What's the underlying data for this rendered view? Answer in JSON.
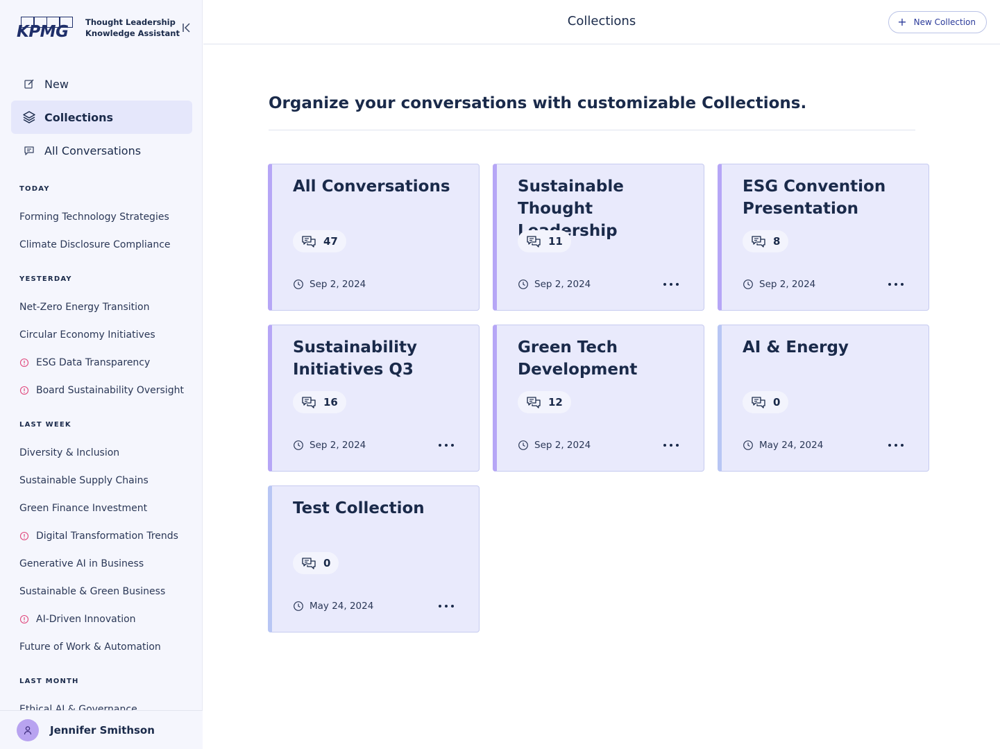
{
  "brand": {
    "logo_text": "KPMG",
    "subtitle_line1": "Thought Leadership",
    "subtitle_line2": "Knowledge Assistant"
  },
  "nav": {
    "items": [
      {
        "label": "New",
        "icon": "edit-icon",
        "active": false
      },
      {
        "label": "Collections",
        "icon": "layers-icon",
        "active": true
      },
      {
        "label": "All Conversations",
        "icon": "chat-icon",
        "active": false
      }
    ]
  },
  "history": {
    "groups": [
      {
        "title": "TODAY",
        "items": [
          {
            "label": "Forming Technology Strategies",
            "warning": false
          },
          {
            "label": "Climate Disclosure Compliance",
            "warning": false
          }
        ]
      },
      {
        "title": "YESTERDAY",
        "items": [
          {
            "label": "Net-Zero Energy Transition",
            "warning": false
          },
          {
            "label": "Circular Economy Initiatives",
            "warning": false
          },
          {
            "label": "ESG Data Transparency",
            "warning": true
          },
          {
            "label": "Board Sustainability Oversight",
            "warning": true
          }
        ]
      },
      {
        "title": "LAST WEEK",
        "items": [
          {
            "label": "Diversity & Inclusion",
            "warning": false
          },
          {
            "label": "Sustainable Supply Chains",
            "warning": false
          },
          {
            "label": "Green Finance Investment",
            "warning": false
          },
          {
            "label": "Digital Transformation Trends",
            "warning": true
          },
          {
            "label": "Generative AI in Business",
            "warning": false
          },
          {
            "label": "Sustainable & Green Business",
            "warning": false
          },
          {
            "label": "AI-Driven Innovation",
            "warning": true
          },
          {
            "label": "Future of Work & Automation",
            "warning": false
          }
        ]
      },
      {
        "title": "LAST MONTH",
        "items": [
          {
            "label": "Ethical AI & Governance",
            "warning": false
          }
        ]
      }
    ]
  },
  "user": {
    "name": "Jennifer Smithson"
  },
  "header": {
    "title": "Collections",
    "new_collection_label": "New Collection"
  },
  "main": {
    "heading": "Organize your conversations with customizable Collections."
  },
  "collections": [
    {
      "title": "All Conversations",
      "count": "47",
      "date": "Sep 2, 2024",
      "menu": false,
      "accent": "purple"
    },
    {
      "title": "Sustainable Thought Leadership",
      "count": "11",
      "date": "Sep 2, 2024",
      "menu": true,
      "accent": "purple"
    },
    {
      "title": "ESG Convention Presentation",
      "count": "8",
      "date": "Sep 2, 2024",
      "menu": true,
      "accent": "purple"
    },
    {
      "title": "Sustainability Initiatives Q3",
      "count": "16",
      "date": "Sep 2, 2024",
      "menu": true,
      "accent": "purple"
    },
    {
      "title": "Green Tech Development",
      "count": "12",
      "date": "Sep 2, 2024",
      "menu": true,
      "accent": "purple"
    },
    {
      "title": "AI & Energy",
      "count": "0",
      "date": "May 24, 2024",
      "menu": true,
      "accent": "blue"
    },
    {
      "title": "Test Collection",
      "count": "0",
      "date": "May 24, 2024",
      "menu": true,
      "accent": "blue"
    }
  ],
  "colors": {
    "sidebar_bg": "#f5f6fd",
    "active_nav_bg": "#e5e7fb",
    "card_bg": "#e9eafc",
    "accent_purple": "#b6a6f6",
    "accent_blue": "#b8c6f4",
    "warning": "#e0457b",
    "brand_navy": "#1f2f6a"
  }
}
